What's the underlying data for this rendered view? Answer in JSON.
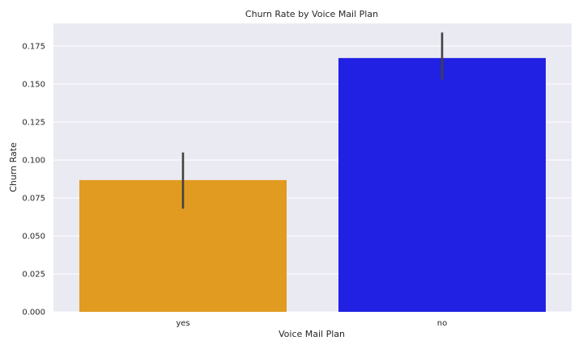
{
  "chart_data": {
    "type": "bar",
    "title": "Churn Rate by Voice Mail Plan",
    "xlabel": "Voice Mail Plan",
    "ylabel": "Churn Rate",
    "categories": [
      "yes",
      "no"
    ],
    "values": [
      0.0868,
      0.1672
    ],
    "error_low": [
      0.068,
      0.153
    ],
    "error_high": [
      0.105,
      0.184
    ],
    "ylim": [
      0,
      0.19
    ],
    "yticks": [
      0.0,
      0.025,
      0.05,
      0.075,
      0.1,
      0.125,
      0.15,
      0.175
    ],
    "ytick_labels": [
      "0.000",
      "0.025",
      "0.050",
      "0.075",
      "0.100",
      "0.125",
      "0.150",
      "0.175"
    ],
    "grid": true,
    "colors": {
      "bars": [
        "#e09b20",
        "#2121e3"
      ],
      "background": "#eaeaf2",
      "grid": "#ffffff",
      "errorbar": "#424242"
    }
  }
}
